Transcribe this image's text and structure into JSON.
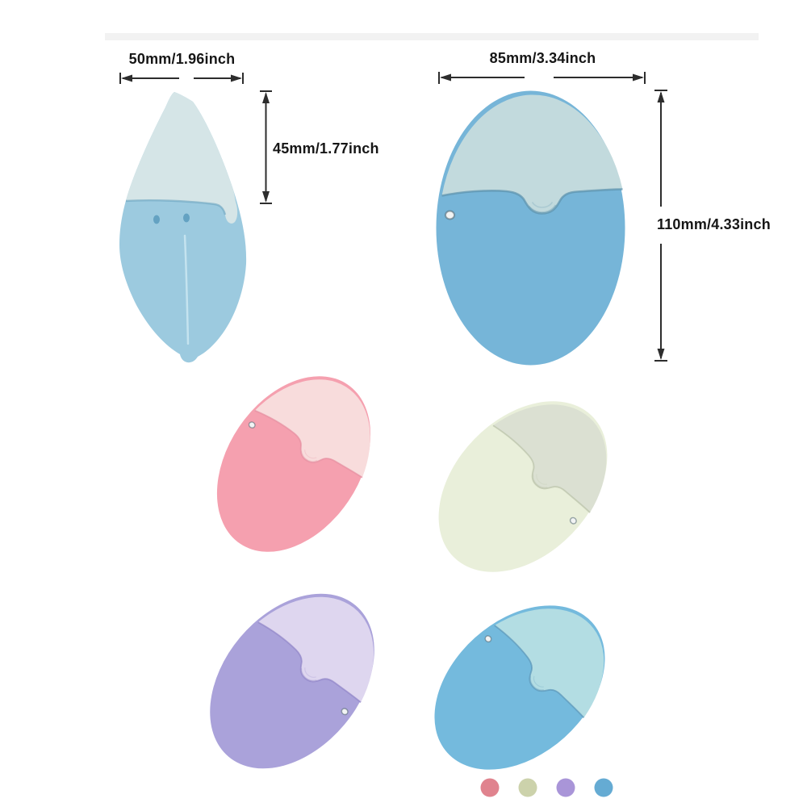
{
  "product": {
    "dimensions": {
      "side_width": "50mm/1.96inch",
      "side_height": "45mm/1.77inch",
      "front_width": "85mm/3.34inch",
      "front_height": "110mm/4.33inch"
    },
    "colors": {
      "front": {
        "name": "blue-front",
        "cap": "#c2dadd",
        "body": "#76b5d8",
        "seam": "#5b92ad"
      },
      "side": {
        "name": "blue-side",
        "cap": "#d5e5e7",
        "body": "#9ccadf",
        "seam": "#6ba4bf",
        "vent_dots": "#64a2c2",
        "center_highlight": "#c9e6f1"
      },
      "variants": [
        {
          "name": "pink",
          "cap": "#f8dcdc",
          "body": "#f5a0af",
          "seam": "#e58da0"
        },
        {
          "name": "green",
          "cap": "#dbe0d2",
          "body": "#e9efda",
          "seam": "#b9c2a8"
        },
        {
          "name": "purple",
          "cap": "#ded6ef",
          "body": "#aaa2da",
          "seam": "#9085c8"
        },
        {
          "name": "blue",
          "cap": "#b3dde3",
          "body": "#74badd",
          "seam": "#5b95b8"
        }
      ]
    },
    "swatches": [
      {
        "name": "pink",
        "color": "#e0838e"
      },
      {
        "name": "green",
        "color": "#ccd2ab"
      },
      {
        "name": "purple",
        "color": "#a995d8"
      },
      {
        "name": "blue",
        "color": "#65abd3"
      }
    ],
    "arrow_color": "#2d2d2d"
  }
}
